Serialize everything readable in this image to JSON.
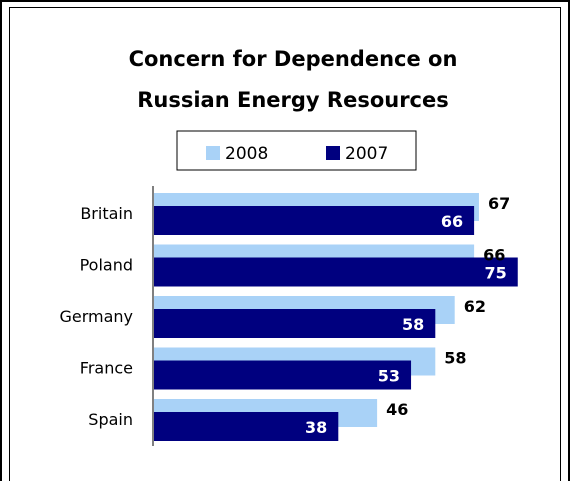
{
  "chart_data": {
    "type": "bar",
    "orientation": "horizontal",
    "title_lines": [
      "Concern for Dependence on",
      "Russian Energy Resources"
    ],
    "categories": [
      "Britain",
      "Poland",
      "Germany",
      "France",
      "Spain"
    ],
    "series": [
      {
        "name": "2008",
        "color": "#a9d2f7",
        "values": [
          67,
          66,
          62,
          58,
          46
        ]
      },
      {
        "name": "2007",
        "color": "#00007f",
        "values": [
          66,
          75,
          58,
          53,
          38
        ]
      }
    ],
    "xlim": [
      0,
      80
    ],
    "grid": false,
    "legend_position": "top-center"
  },
  "colors": {
    "series_2008": "#a9d2f7",
    "series_2007": "#00007f",
    "axis": "#000000"
  }
}
